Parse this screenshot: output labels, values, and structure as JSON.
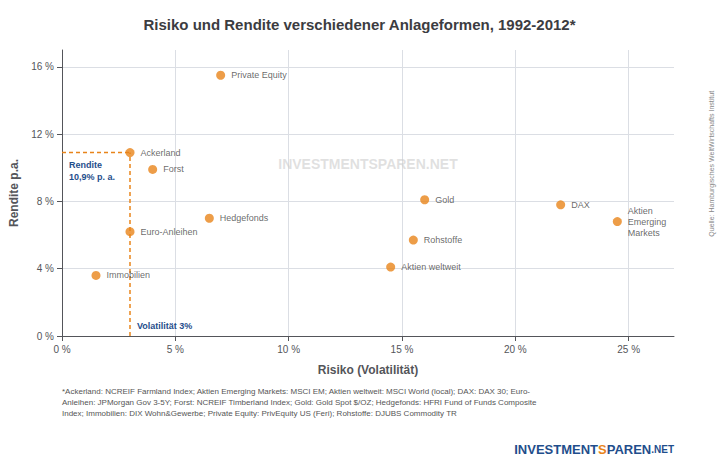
{
  "chart_data": {
    "type": "scatter",
    "title": "Risiko und Rendite verschiedener Anlageformen, 1992-2012*",
    "xlabel": "Risiko (Volatilität)",
    "ylabel": "Rendite p.a.",
    "x": [
      1.5,
      3.0,
      3.0,
      4.0,
      6.5,
      7.0,
      14.5,
      15.5,
      16.0,
      22.0,
      24.5
    ],
    "values": [
      3.6,
      6.2,
      10.9,
      9.9,
      7.0,
      15.5,
      4.1,
      5.7,
      8.1,
      7.8,
      6.8
    ],
    "labels": [
      "Immobilien",
      "Euro-Anleihen",
      "Ackerland",
      "Forst",
      "Hedgefonds",
      "Private Equity",
      "Aktien weltweit",
      "Rohstoffe",
      "Gold",
      "DAX",
      "Aktien\nEmerging\nMarkets"
    ],
    "color": "#E8841A",
    "xlim": [
      0,
      27
    ],
    "ylim": [
      0,
      17
    ],
    "xticks": [
      {
        "value": 0,
        "label": "0 %"
      },
      {
        "value": 5,
        "label": "5 %"
      },
      {
        "value": 10,
        "label": "10 %"
      },
      {
        "value": 15,
        "label": "15 %"
      },
      {
        "value": 20,
        "label": "20 %"
      },
      {
        "value": 25,
        "label": "25 %"
      }
    ],
    "yticks": [
      {
        "value": 0,
        "label": "0 %"
      },
      {
        "value": 4,
        "label": "4 %"
      },
      {
        "value": 8,
        "label": "8 %"
      },
      {
        "value": 12,
        "label": "12 %"
      },
      {
        "value": 16,
        "label": "16 %"
      }
    ],
    "grid": true,
    "reference": {
      "x": 3.0,
      "y": 10.9,
      "line_style": "dashed",
      "x_label": "Volatilität 3%",
      "y_label": "Rendite\n10,9% p. a."
    },
    "watermark": "INVESTMENTSPAREN.NET",
    "footnote": "*Ackerland: NCREIF Farmland Index; Aktien Emerging Markets: MSCI EM; Aktien weltweit: MSCI World (local); DAX: DAX 30; Euro-\nAnleihen: JPMorgan Gov 3-5Y; Forst: NCREIF Timberland Index; Gold: Gold Spot $/OZ; Hedgefonds: HFRI Fund of Funds Composite\nIndex; Immobilien: DIX Wohn&Gewerbe; Private Equity: PrivEquity US (Feri); Rohstoffe: DJUBS Commodity TR",
    "source": "Quelle: Hamburgisches WeltWirtschafts Institut",
    "logo": [
      "INVESTMENT",
      "S",
      "PAREN",
      ".NET"
    ]
  }
}
